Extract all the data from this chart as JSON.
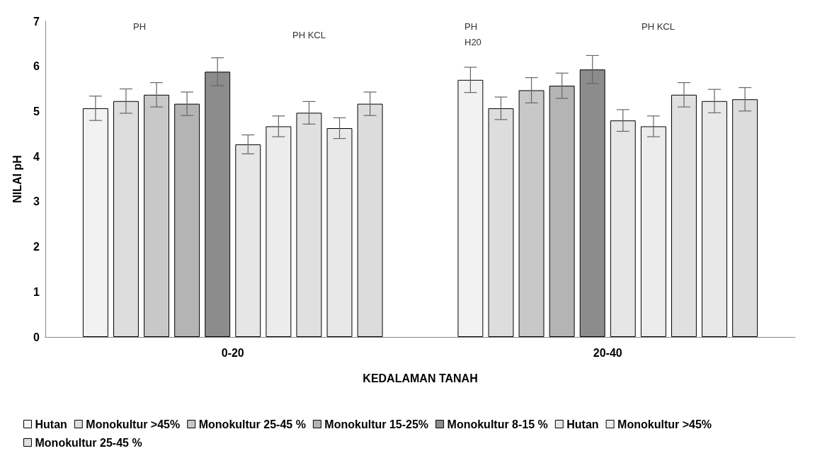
{
  "chart_data": {
    "type": "bar",
    "xlabel": "KEDALAMAN TANAH",
    "ylabel": "NILAI pH",
    "categories": [
      "0-20",
      "20-40"
    ],
    "series": [
      {
        "name": "Hutan",
        "color": "#f2f2f2",
        "values": [
          5.07,
          5.7
        ],
        "errors": [
          0.27,
          0.28
        ]
      },
      {
        "name": "Monokultur >45%",
        "color": "#dddddd",
        "values": [
          5.23,
          5.07
        ],
        "errors": [
          0.27,
          0.25
        ]
      },
      {
        "name": "Monokultur 25-45 %",
        "color": "#c8c8c8",
        "values": [
          5.37,
          5.47
        ],
        "errors": [
          0.27,
          0.28
        ]
      },
      {
        "name": "Monokultur 15-25%",
        "color": "#b4b4b4",
        "values": [
          5.17,
          5.57
        ],
        "errors": [
          0.26,
          0.28
        ]
      },
      {
        "name": "Monokultur 8-15 %",
        "color": "#8c8c8c",
        "values": [
          5.88,
          5.93
        ],
        "errors": [
          0.31,
          0.31
        ]
      },
      {
        "name": "Hutan",
        "color": "#e6e6e6",
        "values": [
          4.27,
          4.8
        ],
        "errors": [
          0.21,
          0.24
        ]
      },
      {
        "name": "Monokultur >45%",
        "color": "#ececec",
        "values": [
          4.67,
          4.67
        ],
        "errors": [
          0.23,
          0.23
        ]
      },
      {
        "name": "Monokultur 25-45 %",
        "color": "#e0e0e0",
        "values": [
          4.97,
          5.37
        ],
        "errors": [
          0.25,
          0.27
        ]
      },
      {
        "color": "#e8e8e8",
        "values": [
          4.63,
          5.23
        ],
        "errors": [
          0.23,
          0.26
        ]
      },
      {
        "color": "#dcdcdc",
        "values": [
          5.17,
          5.27
        ],
        "errors": [
          0.26,
          0.26
        ]
      }
    ],
    "ylim": [
      0,
      7
    ],
    "yticks": [
      0,
      1,
      2,
      3,
      4,
      5,
      6,
      7
    ],
    "grid": false,
    "legend": "bottom",
    "annotations": [
      "PH",
      "PH KCL",
      "PH\nH20",
      "PH KCL"
    ]
  }
}
